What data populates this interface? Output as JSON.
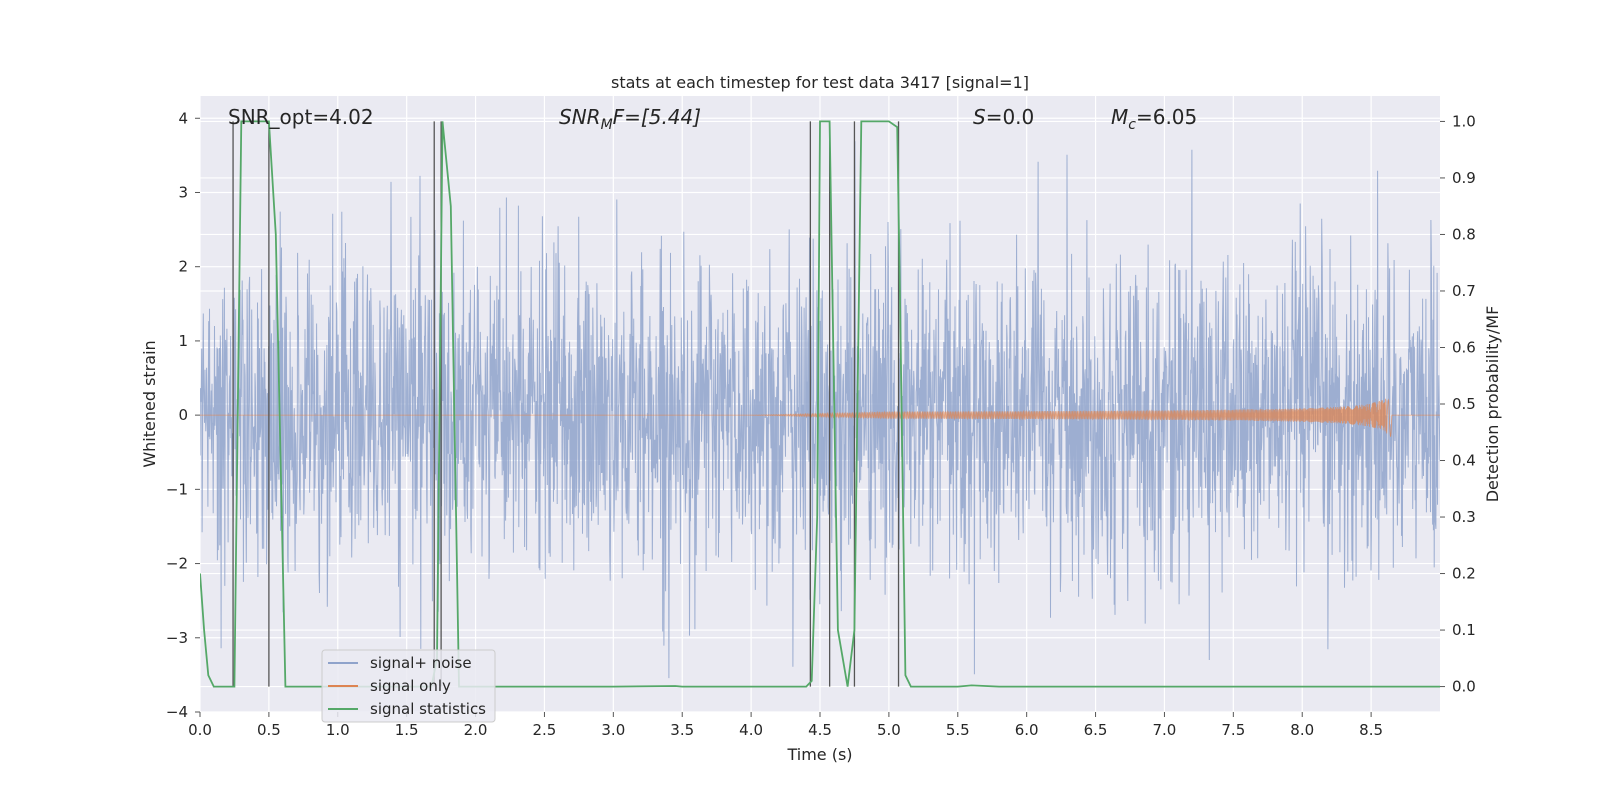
{
  "chart_data": {
    "type": "line",
    "title": "stats at each timestep for test data 3417 [signal=1]",
    "xlabel": "Time (s)",
    "ylabel": "Whitened strain",
    "y2label": "Detection probability/MF",
    "xlim": [
      0.0,
      9.0
    ],
    "ylim": [
      -4,
      4.3
    ],
    "y2lim": [
      -0.045,
      1.045
    ],
    "xticks": [
      "0.0",
      "0.5",
      "1.0",
      "1.5",
      "2.0",
      "2.5",
      "3.0",
      "3.5",
      "4.0",
      "4.5",
      "5.0",
      "5.5",
      "6.0",
      "6.5",
      "7.0",
      "7.5",
      "8.0",
      "8.5"
    ],
    "yticks": [
      "4",
      "3",
      "2",
      "1",
      "0",
      "−1",
      "−2",
      "−3",
      "−4"
    ],
    "y2ticks": [
      "1.0",
      "0.9",
      "0.8",
      "0.7",
      "0.6",
      "0.5",
      "0.4",
      "0.3",
      "0.2",
      "0.1",
      "0.0"
    ],
    "grid": true,
    "legend_position": "lower-left",
    "annotations": {
      "snr_opt": "SNR_opt=4.02",
      "snr_mf_italic": "SNR",
      "snr_mf_sub": "M",
      "snr_mf_rest": "F=[5.44]",
      "s_italic": "S",
      "s_rest": "=0.0",
      "mc_italic": "M",
      "mc_sub": "c",
      "mc_rest": "=6.05"
    },
    "series": [
      {
        "name": "signal+ noise",
        "color": "#8fa3cb",
        "description_values": "dense noise, approx range -3.6 to 4.0"
      },
      {
        "name": "signal only",
        "color": "#dd8452",
        "chirp_start": 4.0,
        "chirp_end": 8.65,
        "chirp_max_amplitude": 0.38
      },
      {
        "name": "signal statistics",
        "color": "#55a868",
        "x": [
          0.0,
          0.03,
          0.06,
          0.1,
          0.22,
          0.25,
          0.3,
          0.5,
          0.55,
          0.62,
          1.0,
          1.5,
          1.68,
          1.72,
          1.76,
          1.82,
          1.88,
          2.0,
          3.0,
          3.45,
          3.5,
          4.0,
          4.4,
          4.44,
          4.48,
          4.5,
          4.53,
          4.57,
          4.63,
          4.7,
          4.75,
          4.8,
          4.85,
          5.0,
          5.06,
          5.08,
          5.12,
          5.16,
          5.2,
          5.5,
          5.6,
          5.8,
          6.0,
          7.0,
          8.0,
          9.0
        ],
        "y": [
          0.2,
          0.1,
          0.02,
          0.0,
          0.0,
          0.0,
          1.0,
          1.0,
          0.8,
          0.0,
          0.0,
          0.0,
          0.0,
          0.05,
          1.0,
          0.85,
          0.0,
          0.0,
          0.0,
          0.001,
          0.0,
          0.0,
          0.0,
          0.01,
          0.3,
          1.0,
          1.0,
          1.0,
          0.1,
          0.0,
          0.1,
          1.0,
          1.0,
          1.0,
          0.99,
          0.7,
          0.02,
          0.0,
          0.0,
          0.0,
          0.002,
          0.0,
          0.0,
          0.0,
          0.0,
          0.0
        ]
      }
    ],
    "vertical_lines_x": [
      0.24,
      0.5,
      1.7,
      1.75,
      4.43,
      4.57,
      4.75,
      5.07
    ]
  },
  "colors": {
    "plot_background": "#eaeaf2",
    "grid": "#ffffff",
    "vline": "#555555"
  }
}
